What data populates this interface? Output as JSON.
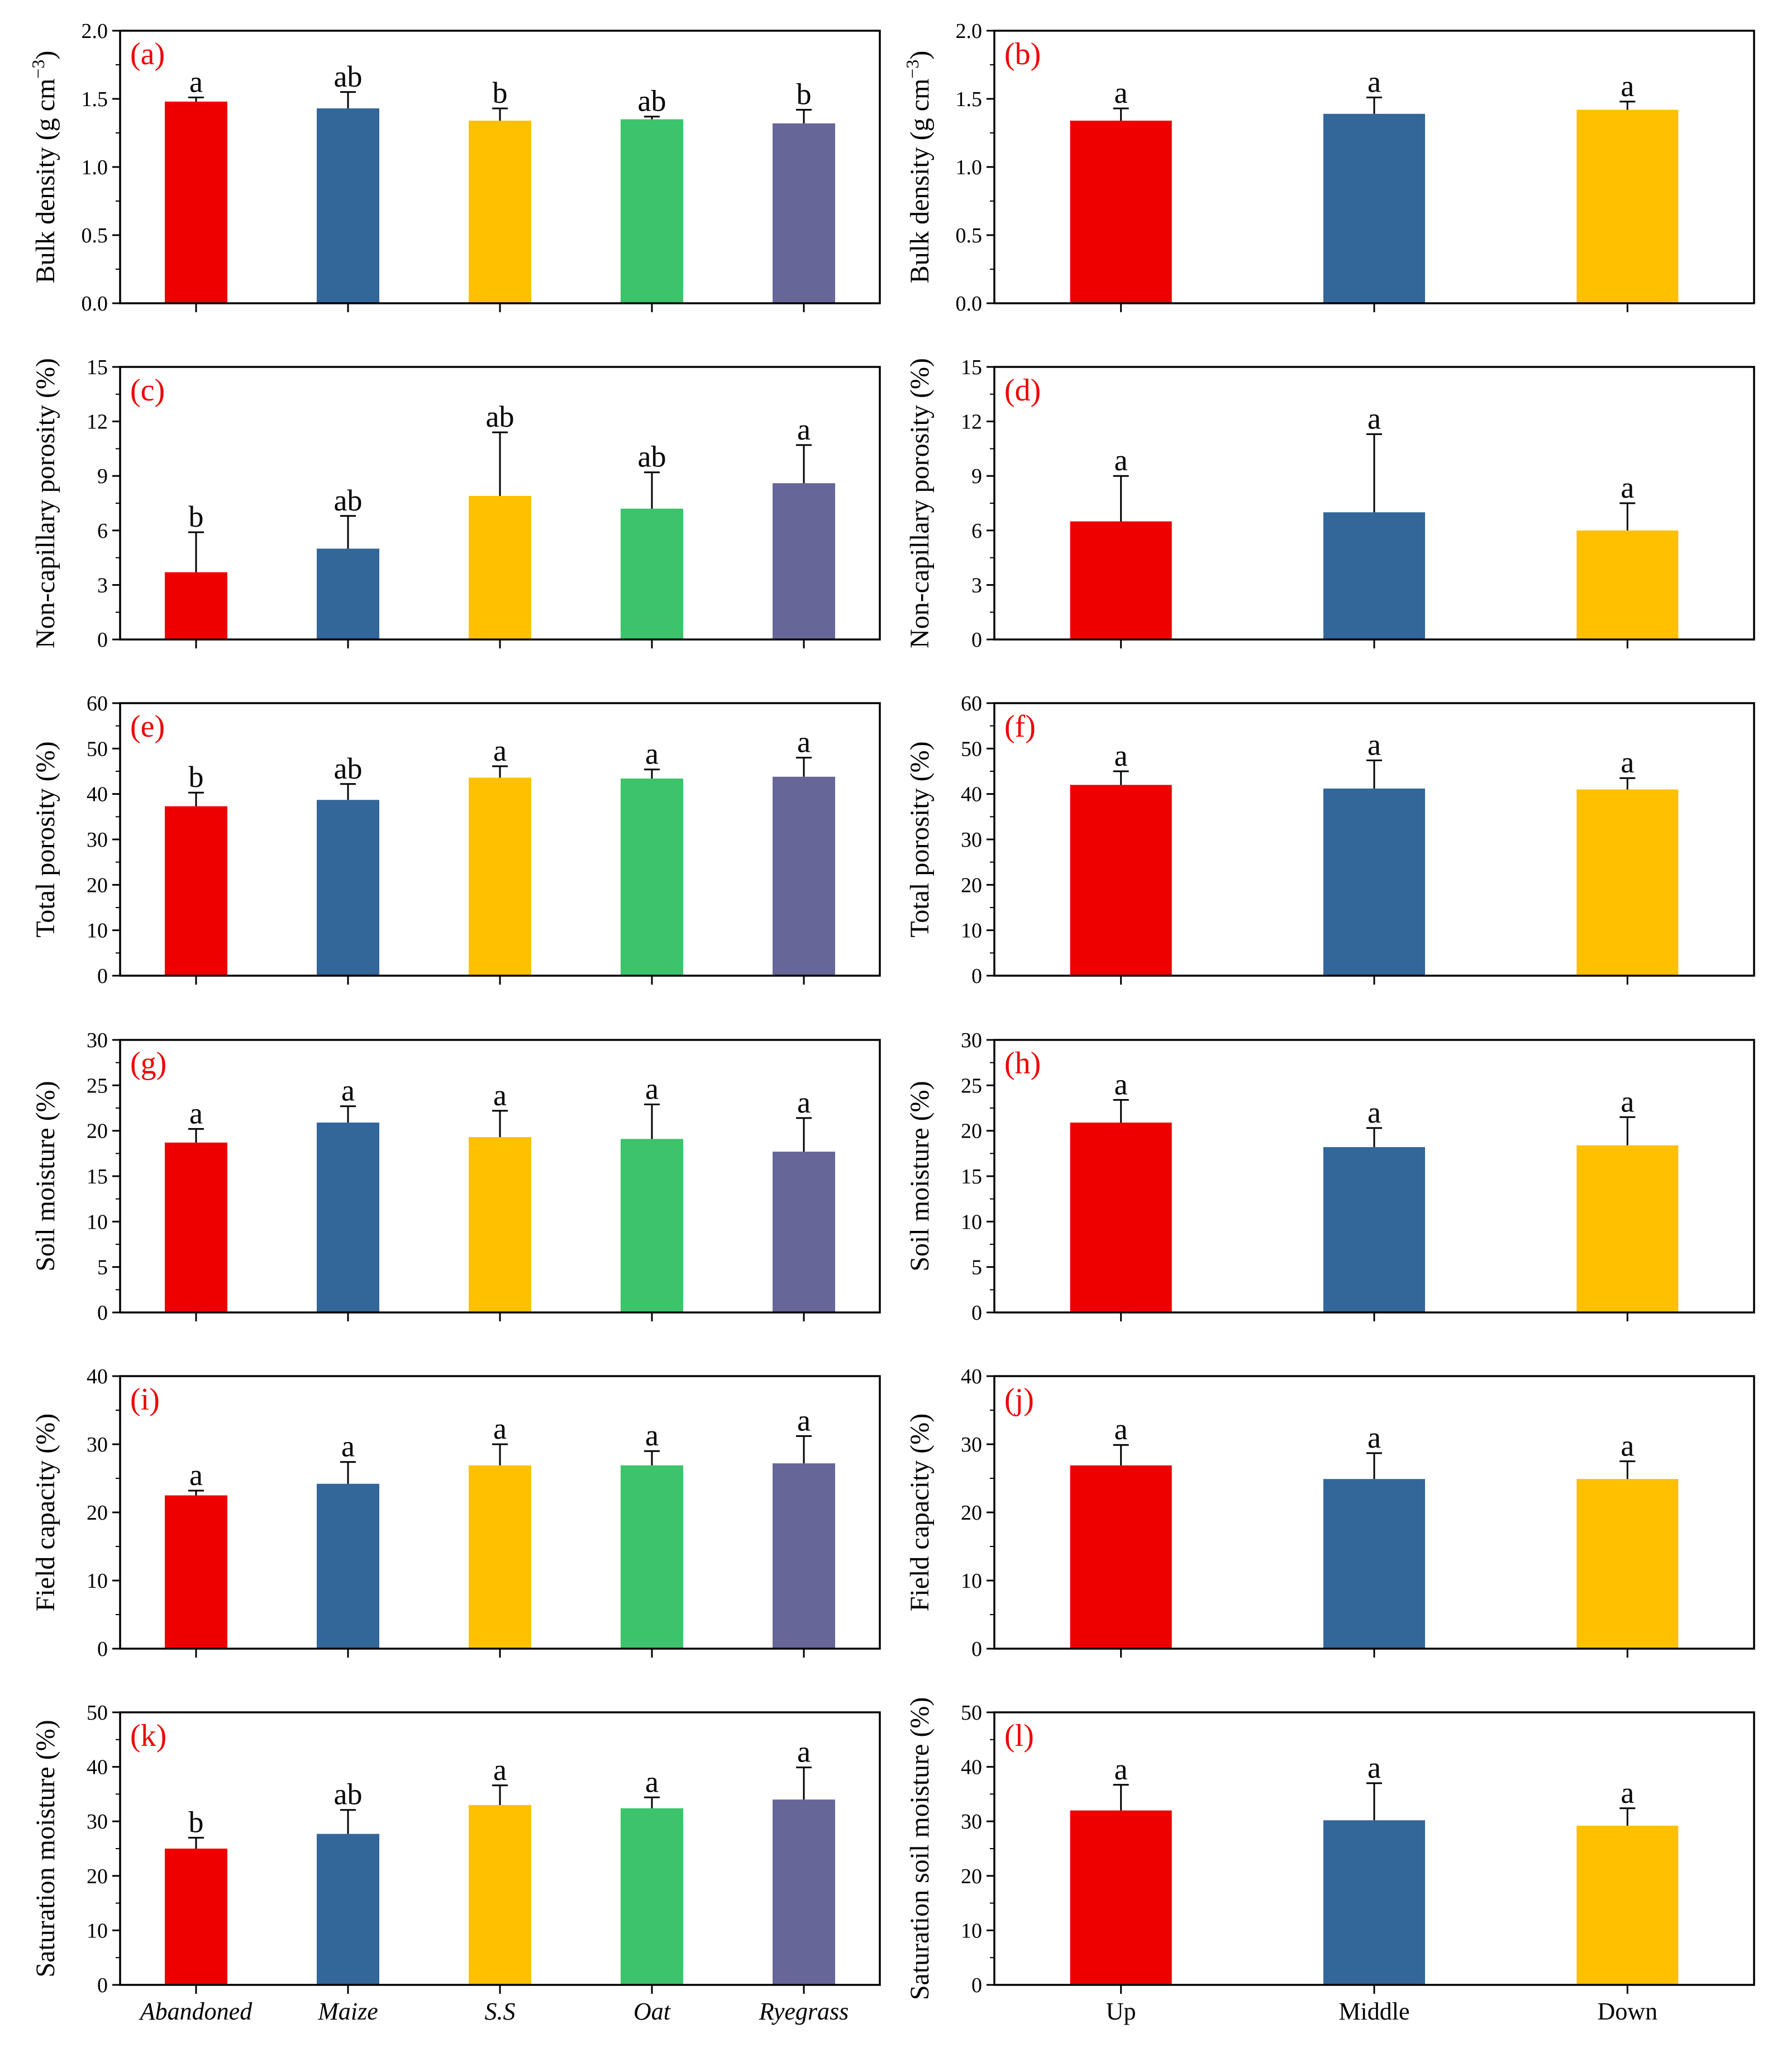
{
  "chart_data": [
    {
      "type": "bar",
      "panel": "(a)",
      "ylabel": "Bulk density (g cm",
      "ylabel_sup": "−3",
      "ylabel_close": ")",
      "ylim": [
        0,
        2.0
      ],
      "yticks": [
        "0.0",
        "0.5",
        "1.0",
        "1.5",
        "2.0"
      ],
      "categories": [
        "Abandoned",
        "Maize",
        "S.S",
        "Oat",
        "Ryegrass"
      ],
      "category_style": "italic",
      "values": [
        1.48,
        1.43,
        1.34,
        1.35,
        1.32
      ],
      "errors": [
        0.03,
        0.12,
        0.09,
        0.02,
        0.1
      ],
      "significance": [
        "a",
        "ab",
        "b",
        "ab",
        "b"
      ],
      "colors": [
        "#ee0000",
        "#336699",
        "#ffc000",
        "#3cc36b",
        "#666699"
      ]
    },
    {
      "type": "bar",
      "panel": "(b)",
      "ylabel": "Bulk density (g cm",
      "ylabel_sup": "−3",
      "ylabel_close": ")",
      "ylim": [
        0,
        2.0
      ],
      "yticks": [
        "0.0",
        "0.5",
        "1.0",
        "1.5",
        "2.0"
      ],
      "categories": [
        "Up",
        "Middle",
        "Down"
      ],
      "category_style": "normal",
      "values": [
        1.34,
        1.39,
        1.42
      ],
      "errors": [
        0.09,
        0.12,
        0.06
      ],
      "significance": [
        "a",
        "a",
        "a"
      ],
      "colors": [
        "#ee0000",
        "#336699",
        "#ffc000"
      ]
    },
    {
      "type": "bar",
      "panel": "(c)",
      "ylabel": "Non-capillary porosity (%)",
      "ylim": [
        0,
        15
      ],
      "yticks": [
        "0",
        "3",
        "6",
        "9",
        "12",
        "15"
      ],
      "categories": [
        "Abandoned",
        "Maize",
        "S.S",
        "Oat",
        "Ryegrass"
      ],
      "category_style": "italic",
      "values": [
        3.7,
        5.0,
        7.9,
        7.2,
        8.6
      ],
      "errors": [
        2.2,
        1.8,
        3.5,
        2.0,
        2.1
      ],
      "significance": [
        "b",
        "ab",
        "ab",
        "ab",
        "a"
      ],
      "colors": [
        "#ee0000",
        "#336699",
        "#ffc000",
        "#3cc36b",
        "#666699"
      ]
    },
    {
      "type": "bar",
      "panel": "(d)",
      "ylabel": "Non-capillary porosity (%)",
      "ylim": [
        0,
        15
      ],
      "yticks": [
        "0",
        "3",
        "6",
        "9",
        "12",
        "15"
      ],
      "categories": [
        "Up",
        "Middle",
        "Down"
      ],
      "category_style": "normal",
      "values": [
        6.5,
        7.0,
        6.0
      ],
      "errors": [
        2.5,
        4.3,
        1.5
      ],
      "significance": [
        "a",
        "a",
        "a"
      ],
      "colors": [
        "#ee0000",
        "#336699",
        "#ffc000"
      ]
    },
    {
      "type": "bar",
      "panel": "(e)",
      "ylabel": "Total porosity (%)",
      "ylim": [
        0,
        60
      ],
      "yticks": [
        "0",
        "10",
        "20",
        "30",
        "40",
        "50",
        "60"
      ],
      "categories": [
        "Abandoned",
        "Maize",
        "S.S",
        "Oat",
        "Ryegrass"
      ],
      "category_style": "italic",
      "values": [
        37.3,
        38.7,
        43.6,
        43.4,
        43.8
      ],
      "errors": [
        3.0,
        3.5,
        2.5,
        2.0,
        4.2
      ],
      "significance": [
        "b",
        "ab",
        "a",
        "a",
        "a"
      ],
      "colors": [
        "#ee0000",
        "#336699",
        "#ffc000",
        "#3cc36b",
        "#666699"
      ]
    },
    {
      "type": "bar",
      "panel": "(f)",
      "ylabel": "Total porosity (%)",
      "ylim": [
        0,
        60
      ],
      "yticks": [
        "0",
        "10",
        "20",
        "30",
        "40",
        "50",
        "60"
      ],
      "categories": [
        "Up",
        "Middle",
        "Down"
      ],
      "category_style": "normal",
      "values": [
        42.0,
        41.2,
        41.0
      ],
      "errors": [
        3.0,
        6.2,
        2.5
      ],
      "significance": [
        "a",
        "a",
        "a"
      ],
      "colors": [
        "#ee0000",
        "#336699",
        "#ffc000"
      ]
    },
    {
      "type": "bar",
      "panel": "(g)",
      "ylabel": "Soil moisture (%)",
      "ylim": [
        0,
        30
      ],
      "yticks": [
        "0",
        "5",
        "10",
        "15",
        "20",
        "25",
        "30"
      ],
      "categories": [
        "Abandoned",
        "Maize",
        "S.S",
        "Oat",
        "Ryegrass"
      ],
      "category_style": "italic",
      "values": [
        18.7,
        20.9,
        19.3,
        19.1,
        17.7
      ],
      "errors": [
        1.5,
        1.8,
        2.9,
        3.8,
        3.7
      ],
      "significance": [
        "a",
        "a",
        "a",
        "a",
        "a"
      ],
      "colors": [
        "#ee0000",
        "#336699",
        "#ffc000",
        "#3cc36b",
        "#666699"
      ]
    },
    {
      "type": "bar",
      "panel": "(h)",
      "ylabel": "Soil moisture (%)",
      "ylim": [
        0,
        30
      ],
      "yticks": [
        "0",
        "5",
        "10",
        "15",
        "20",
        "25",
        "30"
      ],
      "categories": [
        "Up",
        "Middle",
        "Down"
      ],
      "category_style": "normal",
      "values": [
        20.9,
        18.2,
        18.4
      ],
      "errors": [
        2.5,
        2.1,
        3.1
      ],
      "significance": [
        "a",
        "a",
        "a"
      ],
      "colors": [
        "#ee0000",
        "#336699",
        "#ffc000"
      ]
    },
    {
      "type": "bar",
      "panel": "(i)",
      "ylabel": "Field capacity (%)",
      "ylim": [
        0,
        40
      ],
      "yticks": [
        "0",
        "10",
        "20",
        "30",
        "40"
      ],
      "categories": [
        "Abandoned",
        "Maize",
        "S.S",
        "Oat",
        "Ryegrass"
      ],
      "category_style": "italic",
      "values": [
        22.5,
        24.2,
        26.9,
        26.9,
        27.2
      ],
      "errors": [
        0.7,
        3.2,
        3.1,
        2.1,
        4.0
      ],
      "significance": [
        "a",
        "a",
        "a",
        "a",
        "a"
      ],
      "colors": [
        "#ee0000",
        "#336699",
        "#ffc000",
        "#3cc36b",
        "#666699"
      ]
    },
    {
      "type": "bar",
      "panel": "(j)",
      "ylabel": "Field capacity (%)",
      "ylim": [
        0,
        40
      ],
      "yticks": [
        "0",
        "10",
        "20",
        "30",
        "40"
      ],
      "categories": [
        "Up",
        "Middle",
        "Down"
      ],
      "category_style": "normal",
      "values": [
        26.9,
        24.9,
        24.9
      ],
      "errors": [
        3.0,
        3.8,
        2.6
      ],
      "significance": [
        "a",
        "a",
        "a"
      ],
      "colors": [
        "#ee0000",
        "#336699",
        "#ffc000"
      ]
    },
    {
      "type": "bar",
      "panel": "(k)",
      "ylabel": "Saturation moisture (%)",
      "ylim": [
        0,
        50
      ],
      "yticks": [
        "0",
        "10",
        "20",
        "30",
        "40",
        "50"
      ],
      "categories": [
        "Abandoned",
        "Maize",
        "S.S",
        "Oat",
        "Ryegrass"
      ],
      "category_style": "italic",
      "values": [
        25.0,
        27.7,
        33.0,
        32.4,
        34.0
      ],
      "errors": [
        2.0,
        4.4,
        3.6,
        2.0,
        5.9
      ],
      "significance": [
        "b",
        "ab",
        "a",
        "a",
        "a"
      ],
      "colors": [
        "#ee0000",
        "#336699",
        "#ffc000",
        "#3cc36b",
        "#666699"
      ]
    },
    {
      "type": "bar",
      "panel": "(l)",
      "ylabel": "Saturation soil moisture (%)",
      "ylim": [
        0,
        50
      ],
      "yticks": [
        "0",
        "10",
        "20",
        "30",
        "40",
        "50"
      ],
      "categories": [
        "Up",
        "Middle",
        "Down"
      ],
      "category_style": "normal",
      "values": [
        32.0,
        30.2,
        29.2
      ],
      "errors": [
        4.7,
        6.8,
        3.2
      ],
      "significance": [
        "a",
        "a",
        "a"
      ],
      "colors": [
        "#ee0000",
        "#336699",
        "#ffc000"
      ]
    }
  ],
  "colors": {
    "panel_label": "#ee0000",
    "axis": "#000000",
    "background": "#ffffff"
  }
}
